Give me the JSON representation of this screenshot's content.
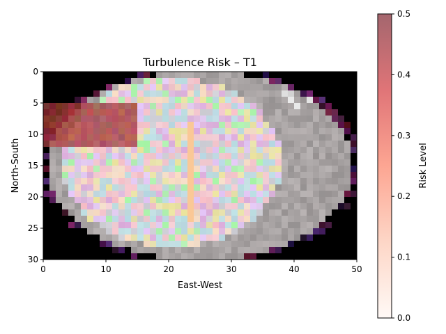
{
  "chart_data": {
    "type": "heatmap",
    "title": "Turbulence Risk – T1",
    "xlabel": "East-West",
    "ylabel": "North-South",
    "xlim": [
      0,
      50
    ],
    "ylim": [
      30,
      0
    ],
    "x_ticks": [
      0,
      10,
      20,
      30,
      40,
      50
    ],
    "y_ticks": [
      0,
      5,
      10,
      15,
      20,
      25,
      30
    ],
    "grid": false,
    "grid_size": [
      50,
      30
    ],
    "base_image": "grayscale brain-like MRI slice with pastel multicolor overlay",
    "overlay_region": {
      "x": [
        0,
        15
      ],
      "y": [
        5,
        12
      ],
      "risk_level": 0.5
    },
    "colorbar": {
      "label": "Risk Level",
      "range": [
        0,
        0.5
      ],
      "ticks": [
        0.0,
        0.1,
        0.2,
        0.3,
        0.4,
        0.5
      ],
      "tick_labels": [
        "0.0",
        "0.1",
        "0.2",
        "0.3",
        "0.4",
        "0.5"
      ],
      "colormap": "Reds",
      "alpha": 0.6,
      "colors": [
        "#fff5f0",
        "#fcbba1",
        "#fb6a4a",
        "#cb181d",
        "#67000d"
      ]
    }
  }
}
